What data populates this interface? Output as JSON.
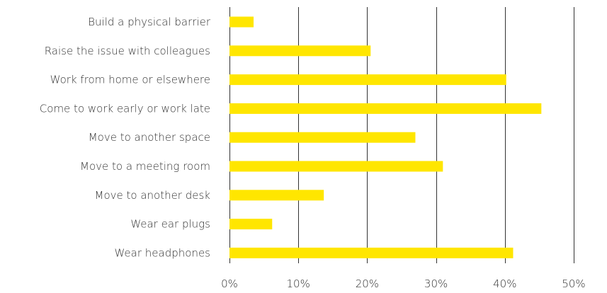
{
  "chart_data": {
    "type": "bar",
    "orientation": "horizontal",
    "categories": [
      "Build a physical barrier",
      "Raise the issue with colleagues",
      "Work from home or elsewhere",
      "Come to work early or work late",
      "Move to another space",
      "Move to a meeting room",
      "Move to another desk",
      "Wear ear plugs",
      "Wear headphones"
    ],
    "values": [
      3.5,
      20.5,
      40.2,
      45.3,
      27.0,
      31.0,
      13.7,
      6.2,
      41.2
    ],
    "xlim": [
      0,
      50
    ],
    "xticks": [
      0,
      10,
      20,
      30,
      40,
      50
    ],
    "xtick_labels": [
      "0%",
      "10%",
      "20%",
      "30%",
      "40%",
      "50%"
    ],
    "grid": "vertical",
    "bar_color": "#ffe600",
    "grid_color": "#333333",
    "title": "",
    "xlabel": "",
    "ylabel": ""
  }
}
